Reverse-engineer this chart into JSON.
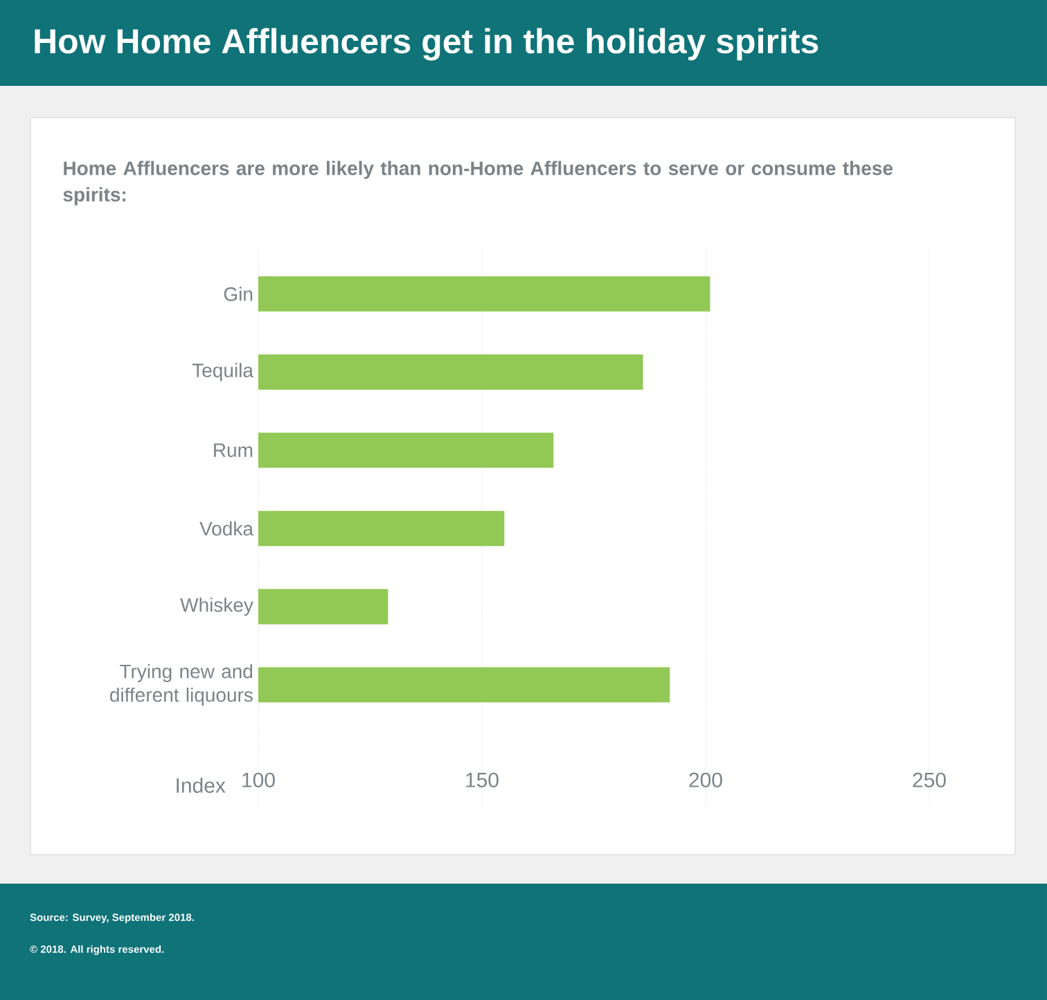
{
  "chart_data": {
    "type": "bar",
    "orientation": "horizontal",
    "title": "How Home Affluencers get in the holiday spirits",
    "subtitle": "Home Affluencers are more likely than non-Home Affluencers to serve or consume these spirits:",
    "xlabel": "Index",
    "categories": [
      "Gin",
      "Tequila",
      "Rum",
      "Vodka",
      "Whiskey",
      "Trying new and different liquours"
    ],
    "values": [
      201,
      186,
      166,
      155,
      129,
      192
    ],
    "color": "#92c855",
    "xlim": [
      100,
      250
    ],
    "xticks": [
      100,
      150,
      200,
      250
    ],
    "grid": "x",
    "annotations": [
      "Source: Survey, September 2018.",
      "© 2018. All rights reserved."
    ]
  }
}
